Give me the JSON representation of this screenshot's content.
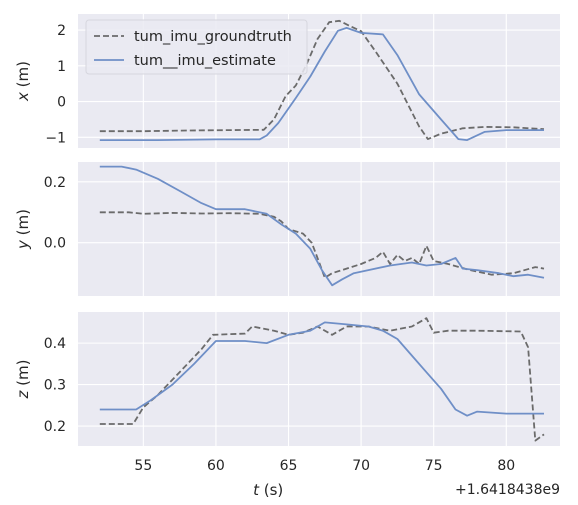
{
  "chart_data": {
    "type": "line",
    "xlabel": "t (s)",
    "x_offset_label": "+1.6418438e9",
    "xlim": [
      50.5,
      83.7
    ],
    "xticks": [
      55,
      60,
      65,
      70,
      75,
      80
    ],
    "grid": true,
    "legend": {
      "position": "top-left",
      "entries": [
        {
          "label": "tum_imu_groundtruth",
          "color": "#6b6b6b",
          "dash": true
        },
        {
          "label": "tum__imu_estimate",
          "color": "#6f8fc7",
          "dash": false
        }
      ]
    },
    "panels": [
      {
        "ylabel": "x (m)",
        "ylim": [
          -1.3,
          2.45
        ],
        "yticks": [
          -1,
          0,
          1,
          2
        ],
        "series": [
          {
            "name": "tum_imu_groundtruth",
            "color": "#6b6b6b",
            "dash": true,
            "points": [
              [
                52,
                -0.83
              ],
              [
                55,
                -0.83
              ],
              [
                58,
                -0.81
              ],
              [
                61,
                -0.8
              ],
              [
                63.3,
                -0.79
              ],
              [
                64,
                -0.5
              ],
              [
                64.8,
                0.15
              ],
              [
                65.5,
                0.45
              ],
              [
                66.2,
                1.0
              ],
              [
                67,
                1.75
              ],
              [
                67.8,
                2.22
              ],
              [
                68.5,
                2.26
              ],
              [
                69.2,
                2.12
              ],
              [
                70,
                1.97
              ],
              [
                71,
                1.4
              ],
              [
                72.5,
                0.5
              ],
              [
                74,
                -0.7
              ],
              [
                74.6,
                -1.05
              ],
              [
                75.5,
                -0.9
              ],
              [
                77,
                -0.75
              ],
              [
                78.5,
                -0.71
              ],
              [
                80.5,
                -0.72
              ],
              [
                82,
                -0.76
              ],
              [
                82.6,
                -0.77
              ]
            ]
          },
          {
            "name": "tum__imu_estimate",
            "color": "#6f8fc7",
            "dash": false,
            "points": [
              [
                52,
                -1.08
              ],
              [
                56,
                -1.08
              ],
              [
                60,
                -1.06
              ],
              [
                63,
                -1.06
              ],
              [
                63.5,
                -0.95
              ],
              [
                64.3,
                -0.6
              ],
              [
                65.5,
                0.1
              ],
              [
                66.5,
                0.7
              ],
              [
                67.5,
                1.4
              ],
              [
                68.4,
                1.98
              ],
              [
                69,
                2.06
              ],
              [
                70,
                1.92
              ],
              [
                71.5,
                1.88
              ],
              [
                72.5,
                1.3
              ],
              [
                74,
                0.2
              ],
              [
                75.5,
                -0.5
              ],
              [
                76.7,
                -1.05
              ],
              [
                77.3,
                -1.08
              ],
              [
                78.5,
                -0.85
              ],
              [
                80,
                -0.8
              ],
              [
                82.6,
                -0.8
              ]
            ]
          }
        ]
      },
      {
        "ylabel": "y (m)",
        "ylim": [
          -0.175,
          0.265
        ],
        "yticks": [
          0.0,
          0.2
        ],
        "yticklabels": [
          "0.0",
          "0.2"
        ],
        "series": [
          {
            "name": "tum_imu_groundtruth",
            "color": "#6b6b6b",
            "dash": true,
            "points": [
              [
                52,
                0.1
              ],
              [
                54,
                0.1
              ],
              [
                55,
                0.095
              ],
              [
                57,
                0.098
              ],
              [
                59,
                0.096
              ],
              [
                61,
                0.097
              ],
              [
                63,
                0.095
              ],
              [
                64,
                0.085
              ],
              [
                64.5,
                0.07
              ],
              [
                65,
                0.045
              ],
              [
                66,
                0.03
              ],
              [
                66.6,
                0.0
              ],
              [
                67,
                -0.05
              ],
              [
                67.5,
                -0.115
              ],
              [
                68,
                -0.1
              ],
              [
                69,
                -0.085
              ],
              [
                70,
                -0.07
              ],
              [
                71,
                -0.05
              ],
              [
                71.5,
                -0.03
              ],
              [
                72,
                -0.07
              ],
              [
                72.5,
                -0.04
              ],
              [
                73,
                -0.06
              ],
              [
                73.5,
                -0.05
              ],
              [
                74,
                -0.07
              ],
              [
                74.5,
                -0.01
              ],
              [
                75,
                -0.06
              ],
              [
                76,
                -0.07
              ],
              [
                77.5,
                -0.09
              ],
              [
                79,
                -0.105
              ],
              [
                80.5,
                -0.1
              ],
              [
                82,
                -0.08
              ],
              [
                82.6,
                -0.085
              ]
            ]
          },
          {
            "name": "tum__imu_estimate",
            "color": "#6f8fc7",
            "dash": false,
            "points": [
              [
                52,
                0.25
              ],
              [
                53.5,
                0.25
              ],
              [
                54.5,
                0.24
              ],
              [
                56,
                0.21
              ],
              [
                57.5,
                0.17
              ],
              [
                59,
                0.13
              ],
              [
                60,
                0.11
              ],
              [
                62,
                0.11
              ],
              [
                63.5,
                0.095
              ],
              [
                64.5,
                0.06
              ],
              [
                65.5,
                0.03
              ],
              [
                66.5,
                -0.02
              ],
              [
                67.3,
                -0.09
              ],
              [
                68,
                -0.14
              ],
              [
                68.7,
                -0.12
              ],
              [
                69.5,
                -0.1
              ],
              [
                70.5,
                -0.09
              ],
              [
                72,
                -0.075
              ],
              [
                73.5,
                -0.065
              ],
              [
                74.5,
                -0.075
              ],
              [
                75.5,
                -0.07
              ],
              [
                76.5,
                -0.05
              ],
              [
                77,
                -0.085
              ],
              [
                78,
                -0.09
              ],
              [
                79.5,
                -0.1
              ],
              [
                80.5,
                -0.11
              ],
              [
                81.5,
                -0.105
              ],
              [
                82.6,
                -0.115
              ]
            ]
          }
        ]
      },
      {
        "ylabel": "z (m)",
        "ylim": [
          0.152,
          0.475
        ],
        "yticks": [
          0.2,
          0.3,
          0.4
        ],
        "series": [
          {
            "name": "tum_imu_groundtruth",
            "color": "#6b6b6b",
            "dash": true,
            "points": [
              [
                52,
                0.205
              ],
              [
                54.3,
                0.205
              ],
              [
                55,
                0.245
              ],
              [
                56,
                0.275
              ],
              [
                57.5,
                0.33
              ],
              [
                59,
                0.385
              ],
              [
                59.8,
                0.42
              ],
              [
                62,
                0.423
              ],
              [
                62.5,
                0.44
              ],
              [
                64,
                0.43
              ],
              [
                65,
                0.42
              ],
              [
                66,
                0.425
              ],
              [
                67,
                0.44
              ],
              [
                68,
                0.42
              ],
              [
                69,
                0.44
              ],
              [
                70.5,
                0.44
              ],
              [
                72,
                0.43
              ],
              [
                73.5,
                0.44
              ],
              [
                74.5,
                0.46
              ],
              [
                75,
                0.425
              ],
              [
                76,
                0.43
              ],
              [
                78,
                0.43
              ],
              [
                81,
                0.428
              ],
              [
                81.5,
                0.39
              ],
              [
                82,
                0.165
              ],
              [
                82.6,
                0.18
              ]
            ]
          },
          {
            "name": "tum__imu_estimate",
            "color": "#6f8fc7",
            "dash": false,
            "points": [
              [
                52,
                0.24
              ],
              [
                54.5,
                0.24
              ],
              [
                55.5,
                0.262
              ],
              [
                57,
                0.3
              ],
              [
                58.5,
                0.35
              ],
              [
                60,
                0.405
              ],
              [
                62,
                0.405
              ],
              [
                63.5,
                0.4
              ],
              [
                65,
                0.42
              ],
              [
                66.5,
                0.43
              ],
              [
                67.5,
                0.45
              ],
              [
                69,
                0.445
              ],
              [
                70.5,
                0.44
              ],
              [
                71.5,
                0.43
              ],
              [
                72.5,
                0.41
              ],
              [
                73.5,
                0.37
              ],
              [
                74.5,
                0.33
              ],
              [
                75.5,
                0.29
              ],
              [
                76.5,
                0.24
              ],
              [
                77.3,
                0.225
              ],
              [
                78,
                0.235
              ],
              [
                80,
                0.23
              ],
              [
                82.6,
                0.23
              ]
            ]
          }
        ]
      }
    ]
  }
}
